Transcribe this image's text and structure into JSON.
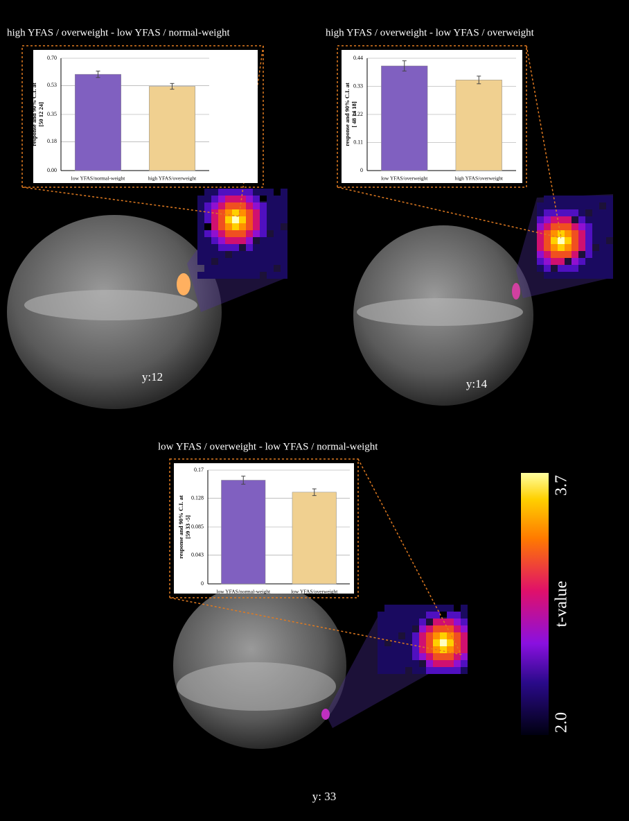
{
  "chart_data": [
    {
      "type": "bar",
      "title": "high YFAS / overweight - low YFAS / normal-weight",
      "y_label": [
        "response and 90% C.I. at",
        "[50 12 24]"
      ],
      "categories": [
        "low YFAS/normal-weight",
        "high YFAS/overweight"
      ],
      "values": [
        0.6,
        0.525
      ],
      "errors": [
        0.02,
        0.018
      ],
      "colors": [
        "#8060c0",
        "#f0d090"
      ],
      "ylim": [
        0,
        0.7
      ],
      "yticks": [
        {
          "value": 0,
          "label": "0.00"
        },
        0.18,
        0.35,
        0.53,
        {
          "value": 0.7,
          "label": "0.70"
        }
      ],
      "grid": true
    },
    {
      "type": "bar",
      "title": "high YFAS / overweight - low YFAS / overweight",
      "y_label": [
        "response and 90% C.I. at",
        "[ 48 14 18]"
      ],
      "categories": [
        "low YFAS/overweight",
        "high YFAS/overweight"
      ],
      "values": [
        0.41,
        0.355
      ],
      "errors": [
        0.02,
        0.015
      ],
      "colors": [
        "#8060c0",
        "#f0d090"
      ],
      "ylim": [
        0,
        0.44
      ],
      "yticks": [
        0,
        0.11,
        0.22,
        0.33,
        0.44
      ],
      "grid": true
    },
    {
      "type": "bar",
      "title": "low YFAS / overweight - low YFAS / normal-weight",
      "y_label": [
        "response and 90% C.I. at",
        "[59 33 -5]"
      ],
      "categories": [
        "low YFAS/normal-weight",
        "low YFAS/overweight"
      ],
      "values": [
        0.155,
        0.137
      ],
      "errors": [
        0.006,
        0.005
      ],
      "colors": [
        "#8060c0",
        "#f0d090"
      ],
      "ylim": [
        0,
        0.17
      ],
      "yticks": [
        0,
        0.043,
        0.085,
        0.128,
        0.17
      ],
      "grid": true
    }
  ],
  "slices": [
    "y:12",
    "y:14",
    "y: 33"
  ],
  "colorbar": {
    "label": "t-value",
    "ticks": [
      {
        "value": 2.0,
        "label": "2.0"
      },
      3.7
    ]
  }
}
